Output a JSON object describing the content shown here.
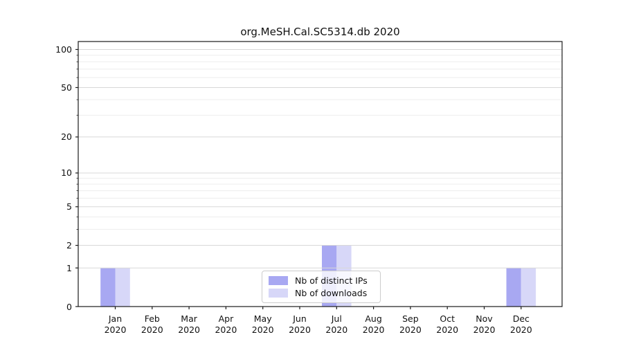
{
  "chart_data": {
    "type": "bar",
    "title": "org.MeSH.Cal.SC5314.db 2020",
    "categories": [
      "Jan",
      "Feb",
      "Mar",
      "Apr",
      "May",
      "Jun",
      "Jul",
      "Aug",
      "Sep",
      "Oct",
      "Nov",
      "Dec"
    ],
    "x_year": "2020",
    "series": [
      {
        "name": "Nb of distinct IPs",
        "color": "#a8a8f2",
        "values": [
          1,
          0,
          0,
          0,
          0,
          0,
          2,
          0,
          0,
          0,
          0,
          1
        ]
      },
      {
        "name": "Nb of downloads",
        "color": "#d7d7f8",
        "values": [
          1,
          0,
          0,
          0,
          0,
          0,
          2,
          0,
          0,
          0,
          0,
          1
        ]
      }
    ],
    "yscale": "log1p",
    "ylim": [
      0,
      116
    ],
    "y_major_ticks": [
      0,
      1,
      2,
      5,
      10,
      20,
      50,
      100
    ],
    "y_minor_ticks": [
      3,
      4,
      6,
      7,
      8,
      9,
      30,
      40,
      60,
      70,
      80,
      90
    ],
    "grid": true,
    "legend_position": "lower center"
  },
  "colors": {
    "background": "#ffffff",
    "spine": "#1a1a1a",
    "grid_major": "#d8d8d8",
    "grid_minor": "#ededed",
    "text": "#111111",
    "legend_border": "#cccccc"
  }
}
